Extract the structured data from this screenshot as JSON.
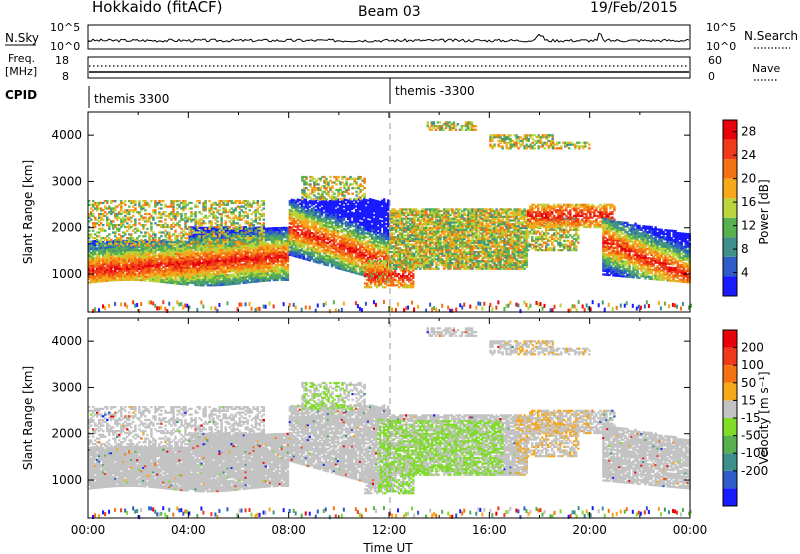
{
  "header": {
    "title": "Hokkaido (fitACF)",
    "beam": "Beam 03",
    "date": "19/Feb/2015"
  },
  "top_panels": {
    "nsky_label": "N.Sky",
    "nsky_ticks": [
      "10^5",
      "10^0"
    ],
    "nsearch_label": "N.Search",
    "nsearch_ticks": [
      "10^5",
      "10^0"
    ],
    "freq_label_1": "Freq.",
    "freq_label_2": "[MHz]",
    "freq_ticks": [
      "18",
      "8"
    ],
    "nave_label": "Nave",
    "nave_ticks": [
      "60",
      "0"
    ],
    "cpid_label": "CPID",
    "cpid_1": "themis 3300",
    "cpid_2": "themis -3300"
  },
  "chart_data": [
    {
      "type": "heatmap",
      "name": "power",
      "ylabel": "Slant Range [km]",
      "xlabel": "Time UT",
      "xlim": [
        0,
        24
      ],
      "ylim": [
        180,
        4500
      ],
      "yticks": [
        "1000",
        "2000",
        "3000",
        "4000"
      ],
      "xticks": [
        "00:00",
        "04:00",
        "08:00",
        "12:00",
        "16:00",
        "20:00",
        "00:00"
      ],
      "colorbar_label": "Power [dB]",
      "colorbar_ticks": [
        "4",
        "8",
        "12",
        "16",
        "20",
        "24",
        "28"
      ],
      "colorbar_range": [
        0,
        30
      ],
      "colors": [
        "#1a1aff",
        "#2e5cc8",
        "#3f8f8a",
        "#59b04e",
        "#b9d53a",
        "#f6a71a",
        "#f57212",
        "#f0381a",
        "#e8000a"
      ]
    },
    {
      "type": "heatmap",
      "name": "velocity",
      "ylabel": "Slant Range [km]",
      "xlabel": "Time UT",
      "xlim": [
        0,
        24
      ],
      "ylim": [
        180,
        4500
      ],
      "yticks": [
        "1000",
        "2000",
        "3000",
        "4000"
      ],
      "xticks": [
        "00:00",
        "04:00",
        "08:00",
        "12:00",
        "16:00",
        "20:00",
        "00:00"
      ],
      "colorbar_label": "Velocity [m s⁻¹]",
      "colorbar_ticks": [
        "200",
        "100",
        "50",
        "15",
        "-15",
        "-50",
        "-100",
        "-200"
      ],
      "colors": [
        "#1a1aff",
        "#2e5cc8",
        "#3f8f8a",
        "#59b04e",
        "#7fdc28",
        "#c3c3c3",
        "#f6a71a",
        "#f57212",
        "#f0381a",
        "#e8000a"
      ]
    }
  ]
}
